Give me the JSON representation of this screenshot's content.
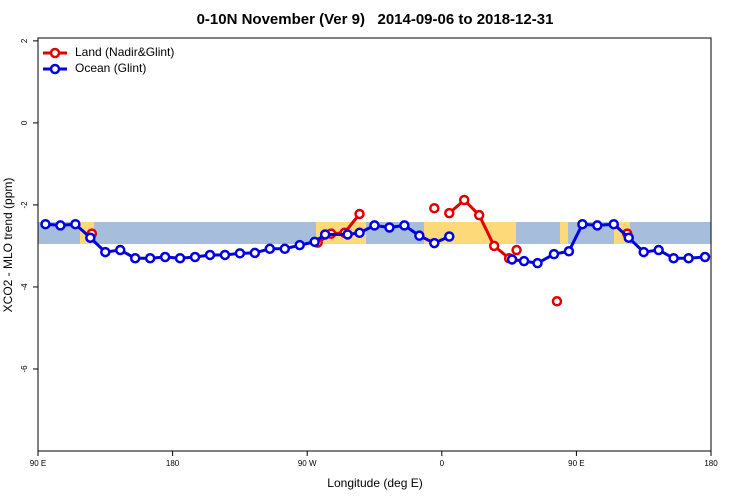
{
  "chart_data": {
    "type": "line",
    "title": "0-10N November (Ver 9)   2014-09-06 to 2018-12-31",
    "xlabel": "Longitude (deg E)",
    "ylabel": "XCO2 - MLO trend (ppm)",
    "xlim": [
      90,
      540
    ],
    "ylim": [
      -8,
      2.07
    ],
    "xticks": [
      {
        "value": 90,
        "label": "90 E"
      },
      180,
      {
        "value": 270,
        "label": "90 W"
      },
      {
        "value": 360,
        "label": "0"
      },
      {
        "value": 450,
        "label": "90 E"
      },
      {
        "value": 540,
        "label": "180"
      }
    ],
    "yticks": [
      -6,
      -4,
      -2,
      0,
      2
    ],
    "legend": "top-left",
    "series": [
      {
        "name": "Land (Nadir&Glint)",
        "color": "#e00000",
        "x": [
          126,
          null,
          277,
          286,
          295,
          305,
          null,
          355,
          null,
          365,
          375,
          385,
          395,
          405,
          null,
          410,
          null,
          437,
          null,
          484
        ],
        "values": [
          -2.7,
          null,
          -2.92,
          -2.7,
          -2.68,
          -2.22,
          null,
          -2.08,
          null,
          -2.2,
          -1.88,
          -2.25,
          -3.0,
          -3.3,
          null,
          -3.1,
          null,
          -4.35,
          null,
          -2.7
        ]
      },
      {
        "name": "Ocean (Glint)",
        "color": "#0000e0",
        "x": [
          95,
          105,
          115,
          125,
          135,
          145,
          155,
          165,
          175,
          185,
          195,
          205,
          215,
          225,
          235,
          245,
          255,
          265,
          275,
          282,
          297,
          305,
          315,
          325,
          335,
          345,
          355,
          365,
          null,
          407,
          415,
          424,
          435,
          445,
          454,
          464,
          475,
          485,
          495,
          505,
          515,
          525,
          536
        ],
        "values": [
          -2.47,
          -2.5,
          -2.47,
          -2.8,
          -3.15,
          -3.1,
          -3.3,
          -3.3,
          -3.27,
          -3.3,
          -3.27,
          -3.22,
          -3.22,
          -3.18,
          -3.17,
          -3.07,
          -3.07,
          -2.98,
          -2.9,
          -2.72,
          -2.72,
          -2.68,
          -2.5,
          -2.55,
          -2.5,
          -2.75,
          -2.93,
          -2.77,
          null,
          -3.33,
          -3.37,
          -3.42,
          -3.2,
          -3.13,
          -2.47,
          -2.5,
          -2.47,
          -2.8,
          -3.15,
          -3.1,
          -3.3,
          -3.3,
          -3.27
        ]
      }
    ]
  }
}
